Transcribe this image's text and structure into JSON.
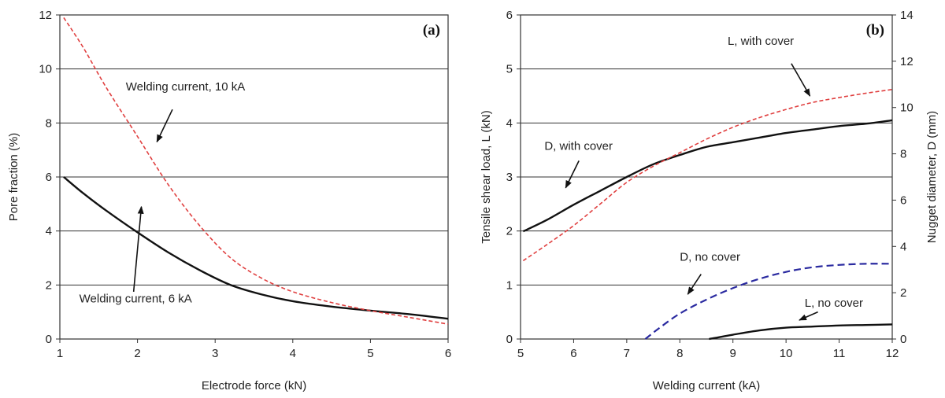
{
  "chart_data": [
    {
      "type": "line",
      "panel_label": "(a)",
      "xlabel": "Electrode force (kN)",
      "ylabel": "Pore fraction (%)",
      "xlim": [
        1,
        6
      ],
      "ylim": [
        0,
        12
      ],
      "xticks": [
        1,
        2,
        3,
        4,
        5,
        6
      ],
      "yticks": [
        0,
        2,
        4,
        6,
        8,
        10,
        12
      ],
      "grid": "horizontal",
      "series": [
        {
          "key": "wc6",
          "color": "#111111",
          "dash": "solid",
          "x": [
            1.05,
            1.3,
            1.6,
            2.0,
            2.4,
            2.8,
            3.2,
            3.6,
            4.0,
            4.5,
            5.0,
            5.5,
            6.0
          ],
          "y": [
            6.0,
            5.4,
            4.75,
            3.95,
            3.2,
            2.55,
            2.0,
            1.65,
            1.4,
            1.2,
            1.05,
            0.92,
            0.75
          ]
        },
        {
          "key": "wc10",
          "color": "#e04040",
          "dash": "dashed",
          "x": [
            1.05,
            1.3,
            1.6,
            2.0,
            2.4,
            2.8,
            3.2,
            3.6,
            4.0,
            4.5,
            5.0,
            5.5,
            6.0
          ],
          "y": [
            11.9,
            10.8,
            9.3,
            7.5,
            5.7,
            4.2,
            3.0,
            2.25,
            1.75,
            1.35,
            1.05,
            0.8,
            0.55
          ]
        }
      ],
      "annotations": [
        {
          "text": "Welding current, 10 kA",
          "x": 1.85,
          "y": 9.2,
          "arrow_from": [
            2.45,
            8.5
          ],
          "arrow_to": [
            2.25,
            7.3
          ]
        },
        {
          "text": "Welding current, 6 kA",
          "x": 1.25,
          "y": 1.35,
          "arrow_from": [
            1.95,
            1.75
          ],
          "arrow_to": [
            2.05,
            4.9
          ]
        }
      ]
    },
    {
      "type": "line",
      "panel_label": "(b)",
      "xlabel": "Welding current (kA)",
      "ylabel": "Tensile shear load, L (kN)",
      "y2label": "Nugget diameter, D  (mm)",
      "xlim": [
        5,
        12
      ],
      "ylim": [
        0,
        6
      ],
      "y2lim": [
        0,
        14
      ],
      "xticks": [
        5,
        6,
        7,
        8,
        9,
        10,
        11,
        12
      ],
      "yticks": [
        0,
        1,
        2,
        3,
        4,
        5,
        6
      ],
      "y2ticks": [
        0,
        2,
        4,
        6,
        8,
        10,
        12,
        14
      ],
      "grid": "horizontal",
      "series": [
        {
          "key": "d_with_cover",
          "axis": "y2",
          "color": "#111111",
          "dash": "solid",
          "x": [
            5.05,
            5.5,
            6.0,
            6.5,
            7.0,
            7.5,
            8.0,
            8.5,
            9.0,
            9.5,
            10.0,
            10.5,
            11.0,
            11.5,
            12.0
          ],
          "y": [
            4.65,
            5.15,
            5.8,
            6.4,
            7.0,
            7.55,
            7.95,
            8.3,
            8.5,
            8.7,
            8.9,
            9.05,
            9.2,
            9.3,
            9.45
          ]
        },
        {
          "key": "l_with_cover",
          "axis": "y",
          "color": "#e04040",
          "dash": "dashed",
          "x": [
            5.05,
            5.5,
            6.0,
            6.5,
            7.0,
            7.5,
            8.0,
            8.5,
            9.0,
            9.5,
            10.0,
            10.5,
            11.0,
            11.5,
            12.0
          ],
          "y": [
            1.45,
            1.75,
            2.1,
            2.5,
            2.9,
            3.2,
            3.45,
            3.7,
            3.92,
            4.1,
            4.25,
            4.38,
            4.47,
            4.55,
            4.62
          ]
        },
        {
          "key": "d_no_cover",
          "axis": "y2",
          "color": "#2a2aa0",
          "dash": "dashed",
          "x": [
            7.35,
            7.6,
            8.0,
            8.5,
            9.0,
            9.5,
            10.0,
            10.5,
            11.0,
            11.5,
            12.0
          ],
          "y": [
            0.0,
            0.45,
            1.1,
            1.7,
            2.2,
            2.6,
            2.9,
            3.1,
            3.2,
            3.25,
            3.25
          ]
        },
        {
          "key": "l_no_cover",
          "axis": "y",
          "color": "#111111",
          "dash": "solid",
          "x": [
            8.55,
            9.0,
            9.5,
            10.0,
            10.5,
            11.0,
            11.5,
            12.0
          ],
          "y": [
            0.0,
            0.08,
            0.16,
            0.21,
            0.23,
            0.25,
            0.26,
            0.27
          ]
        }
      ],
      "annotations": [
        {
          "text": "L, with cover",
          "x": 8.9,
          "y": 5.45,
          "arrow_from": [
            10.1,
            5.1
          ],
          "arrow_to": [
            10.45,
            4.5
          ]
        },
        {
          "text": "D, with cover",
          "x": 5.45,
          "y": 3.5,
          "arrow_from": [
            6.1,
            3.3
          ],
          "arrow_to": [
            5.85,
            2.8
          ]
        },
        {
          "text": "D, no cover",
          "x": 8.0,
          "y": 1.45,
          "arrow_from": [
            8.4,
            1.2
          ],
          "arrow_to": [
            8.15,
            0.83
          ]
        },
        {
          "text": "L, no cover",
          "x": 10.35,
          "y": 0.6,
          "arrow_from": [
            10.6,
            0.5
          ],
          "arrow_to": [
            10.25,
            0.35
          ]
        }
      ]
    }
  ]
}
